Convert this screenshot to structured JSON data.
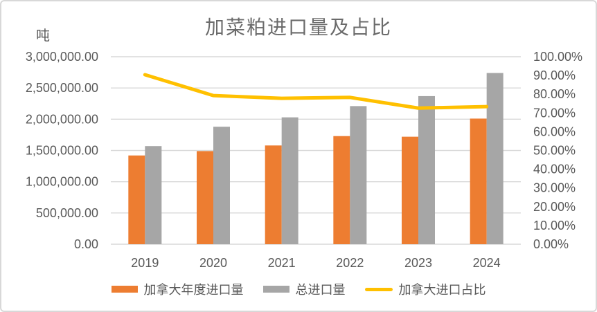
{
  "frame": {
    "background": "#FFFFFF",
    "border_color": "#D8D8D8"
  },
  "chart_data": {
    "type": "bar+line",
    "title": "加菜粕进口量及占比",
    "unit_label": "吨",
    "categories": [
      "2019",
      "2020",
      "2021",
      "2022",
      "2023",
      "2024"
    ],
    "series": [
      {
        "id": "canada-annual-imports",
        "name": "加拿大年度进口量",
        "type": "bar",
        "axis": "left",
        "color": "#ED7D31",
        "values": [
          1420000,
          1490000,
          1580000,
          1730000,
          1720000,
          2010000
        ]
      },
      {
        "id": "total-imports",
        "name": "总进口量",
        "type": "bar",
        "axis": "left",
        "color": "#A6A6A6",
        "values": [
          1570000,
          1880000,
          2030000,
          2210000,
          2370000,
          2740000
        ]
      },
      {
        "id": "canada-import-share",
        "name": "加拿大进口占比",
        "type": "line",
        "axis": "right",
        "color": "#FFC000",
        "values_percent": [
          90.4,
          79.3,
          77.8,
          78.3,
          72.6,
          73.4
        ]
      }
    ],
    "left_axis": {
      "min": 0,
      "max": 3000000,
      "step": 500000,
      "tick_labels": [
        "3,000,000.00",
        "2,500,000.00",
        "2,000,000.00",
        "1,500,000.00",
        "1,000,000.00",
        "500,000.00",
        "0.00"
      ]
    },
    "right_axis": {
      "min": 0,
      "max": 100,
      "step": 10,
      "tick_labels": [
        "100.00%",
        "90.00%",
        "80.00%",
        "70.00%",
        "60.00%",
        "50.00%",
        "40.00%",
        "30.00%",
        "20.00%",
        "10.00%",
        "0.00%"
      ]
    },
    "grid": true,
    "legend_position": "bottom",
    "colors": {
      "text": "#595959",
      "title_text": "#6B6B6B",
      "gridline": "#D9D9D9"
    }
  }
}
